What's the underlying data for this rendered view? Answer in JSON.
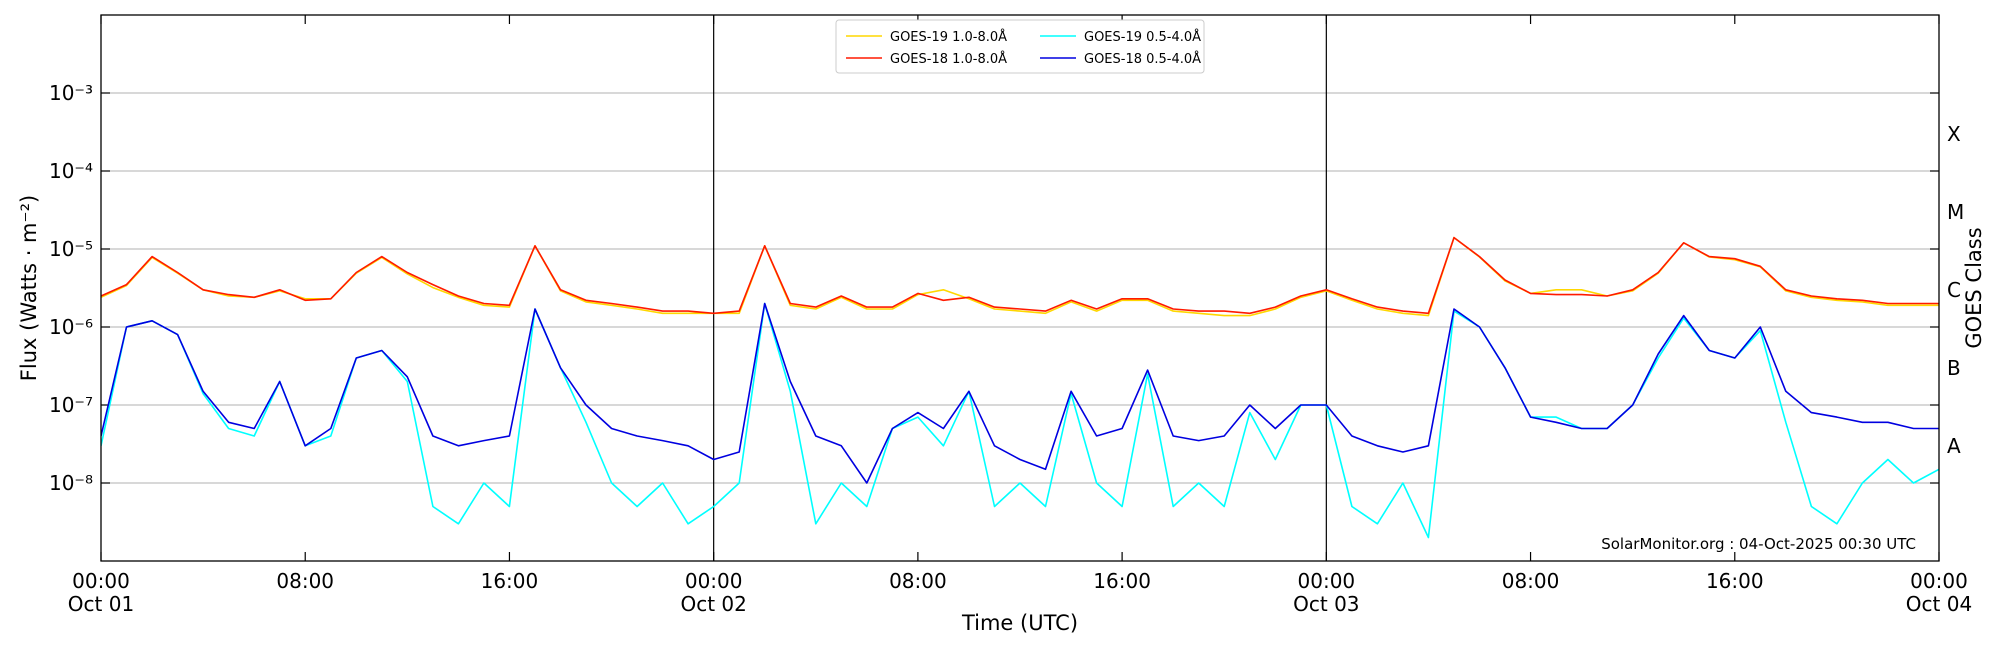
{
  "chart_data": {
    "type": "line",
    "xlabel": "Time (UTC)",
    "ylabel": "Flux (Watts · m⁻²)",
    "y2label": "GOES Class",
    "annotation": "SolarMonitor.org : 04-Oct-2025 00:30 UTC",
    "log_y": true,
    "grid": true,
    "legend": "upper center",
    "xlim": [
      0,
      72
    ],
    "xticks": [
      {
        "value": 0,
        "label": "00:00\nOct 01"
      },
      {
        "value": 8,
        "label": "08:00"
      },
      {
        "value": 16,
        "label": "16:00"
      },
      {
        "value": 24,
        "label": "00:00\nOct 02"
      },
      {
        "value": 32,
        "label": "08:00"
      },
      {
        "value": 40,
        "label": "16:00"
      },
      {
        "value": 48,
        "label": "00:00\nOct 03"
      },
      {
        "value": 56,
        "label": "08:00"
      },
      {
        "value": 64,
        "label": "16:00"
      },
      {
        "value": 72,
        "label": "00:00\nOct 04"
      }
    ],
    "vlines": [
      24,
      48
    ],
    "ylim": [
      1e-09,
      0.01
    ],
    "yticks": [
      {
        "value": 1e-08,
        "label": "10⁻⁸"
      },
      {
        "value": 1e-07,
        "label": "10⁻⁷"
      },
      {
        "value": 1e-06,
        "label": "10⁻⁶"
      },
      {
        "value": 1e-05,
        "label": "10⁻⁵"
      },
      {
        "value": 0.0001,
        "label": "10⁻⁴"
      },
      {
        "value": 0.001,
        "label": "10⁻³"
      }
    ],
    "y2lim": [
      1e-09,
      0.01
    ],
    "y2ticks": [
      {
        "value": 3e-08,
        "label": "A"
      },
      {
        "value": 3e-07,
        "label": "B"
      },
      {
        "value": 3e-06,
        "label": "C"
      },
      {
        "value": 3e-05,
        "label": "M"
      },
      {
        "value": 0.0003,
        "label": "X"
      }
    ],
    "x": [
      0,
      1,
      2,
      3,
      4,
      5,
      6,
      7,
      8,
      9,
      10,
      11,
      12,
      13,
      14,
      15,
      16,
      17,
      18,
      19,
      20,
      21,
      22,
      23,
      24,
      25,
      26,
      27,
      28,
      29,
      30,
      31,
      32,
      33,
      34,
      35,
      36,
      37,
      38,
      39,
      40,
      41,
      42,
      43,
      44,
      45,
      46,
      47,
      48,
      49,
      50,
      51,
      52,
      53,
      54,
      55,
      56,
      57,
      58,
      59,
      60,
      61,
      62,
      63,
      64,
      65,
      66,
      67,
      68,
      69,
      70,
      71,
      72
    ],
    "series": [
      {
        "name": "GOES-19 1.0-8.0Å",
        "color": "#ffd700",
        "values": [
          2.4e-06,
          3.4e-06,
          7.8e-06,
          4.9e-06,
          3e-06,
          2.5e-06,
          2.4e-06,
          2.9e-06,
          2.3e-06,
          2.3e-06,
          4.9e-06,
          7.8e-06,
          4.8e-06,
          3.2e-06,
          2.4e-06,
          1.9e-06,
          1.8e-06,
          1.1e-05,
          2.9e-06,
          2.1e-06,
          1.9e-06,
          1.7e-06,
          1.5e-06,
          1.5e-06,
          1.5e-06,
          1.5e-06,
          1.1e-05,
          1.9e-06,
          1.7e-06,
          2.4e-06,
          1.7e-06,
          1.7e-06,
          2.6e-06,
          3e-06,
          2.3e-06,
          1.7e-06,
          1.6e-06,
          1.5e-06,
          2.1e-06,
          1.6e-06,
          2.2e-06,
          2.2e-06,
          1.6e-06,
          1.5e-06,
          1.4e-06,
          1.4e-06,
          1.7e-06,
          2.4e-06,
          2.9e-06,
          2.2e-06,
          1.7e-06,
          1.5e-06,
          1.4e-06,
          1.4e-05,
          7.9e-06,
          3.9e-06,
          2.7e-06,
          3e-06,
          3e-06,
          2.5e-06,
          2.9e-06,
          4.9e-06,
          1.2e-05,
          7.9e-06,
          7.3e-06,
          5.9e-06,
          2.9e-06,
          2.4e-06,
          2.2e-06,
          2.1e-06,
          1.9e-06,
          1.9e-06,
          1.9e-06
        ]
      },
      {
        "name": "GOES-18 1.0-8.0Å",
        "color": "#ff1a00",
        "values": [
          2.5e-06,
          3.5e-06,
          8e-06,
          5e-06,
          3e-06,
          2.6e-06,
          2.4e-06,
          3e-06,
          2.2e-06,
          2.3e-06,
          5e-06,
          8e-06,
          5e-06,
          3.5e-06,
          2.5e-06,
          2e-06,
          1.9e-06,
          1.1e-05,
          3e-06,
          2.2e-06,
          2e-06,
          1.8e-06,
          1.6e-06,
          1.6e-06,
          1.5e-06,
          1.6e-06,
          1.1e-05,
          2e-06,
          1.8e-06,
          2.5e-06,
          1.8e-06,
          1.8e-06,
          2.7e-06,
          2.2e-06,
          2.4e-06,
          1.8e-06,
          1.7e-06,
          1.6e-06,
          2.2e-06,
          1.7e-06,
          2.3e-06,
          2.3e-06,
          1.7e-06,
          1.6e-06,
          1.6e-06,
          1.5e-06,
          1.8e-06,
          2.5e-06,
          3e-06,
          2.3e-06,
          1.8e-06,
          1.6e-06,
          1.5e-06,
          1.4e-05,
          8e-06,
          4e-06,
          2.7e-06,
          2.6e-06,
          2.6e-06,
          2.5e-06,
          3e-06,
          5e-06,
          1.2e-05,
          8e-06,
          7.5e-06,
          6e-06,
          3e-06,
          2.5e-06,
          2.3e-06,
          2.2e-06,
          2e-06,
          2e-06,
          2e-06
        ]
      },
      {
        "name": "GOES-19 0.5-4.0Å",
        "color": "#00ffff",
        "values": [
          3e-08,
          1e-06,
          1.2e-06,
          8e-07,
          1.4e-07,
          5e-08,
          4e-08,
          2e-07,
          3e-08,
          4e-08,
          4e-07,
          5e-07,
          2e-07,
          5e-09,
          3e-09,
          1e-08,
          5e-09,
          1.7e-06,
          3e-07,
          6e-08,
          1e-08,
          5e-09,
          1e-08,
          3e-09,
          5e-09,
          1e-08,
          2e-06,
          1.5e-07,
          3e-09,
          1e-08,
          5e-09,
          5e-08,
          7e-08,
          3e-08,
          1.5e-07,
          5e-09,
          1e-08,
          5e-09,
          1.4e-07,
          1e-08,
          5e-09,
          2.5e-07,
          5e-09,
          1e-08,
          5e-09,
          8e-08,
          2e-08,
          1e-07,
          1e-07,
          5e-09,
          3e-09,
          1e-08,
          2e-09,
          1.6e-06,
          1e-06,
          3e-07,
          7e-08,
          7e-08,
          5e-08,
          5e-08,
          1e-07,
          4e-07,
          1.3e-06,
          5e-07,
          4e-07,
          9e-07,
          6e-08,
          5e-09,
          3e-09,
          1e-08,
          2e-08,
          1e-08,
          1.5e-08
        ]
      },
      {
        "name": "GOES-18 0.5-4.0Å",
        "color": "#0000e0",
        "values": [
          4e-08,
          1e-06,
          1.2e-06,
          8e-07,
          1.5e-07,
          6e-08,
          5e-08,
          2e-07,
          3e-08,
          5e-08,
          4e-07,
          5e-07,
          2.3e-07,
          4e-08,
          3e-08,
          3.5e-08,
          4e-08,
          1.7e-06,
          3e-07,
          1e-07,
          5e-08,
          4e-08,
          3.5e-08,
          3e-08,
          2e-08,
          2.5e-08,
          2e-06,
          2e-07,
          4e-08,
          3e-08,
          1e-08,
          5e-08,
          8e-08,
          5e-08,
          1.5e-07,
          3e-08,
          2e-08,
          1.5e-08,
          1.5e-07,
          4e-08,
          5e-08,
          2.8e-07,
          4e-08,
          3.5e-08,
          4e-08,
          1e-07,
          5e-08,
          1e-07,
          1e-07,
          4e-08,
          3e-08,
          2.5e-08,
          3e-08,
          1.7e-06,
          1e-06,
          3e-07,
          7e-08,
          6e-08,
          5e-08,
          5e-08,
          1e-07,
          4.5e-07,
          1.4e-06,
          5e-07,
          4e-07,
          1e-06,
          1.5e-07,
          8e-08,
          7e-08,
          6e-08,
          6e-08,
          5e-08,
          5e-08
        ]
      }
    ]
  }
}
